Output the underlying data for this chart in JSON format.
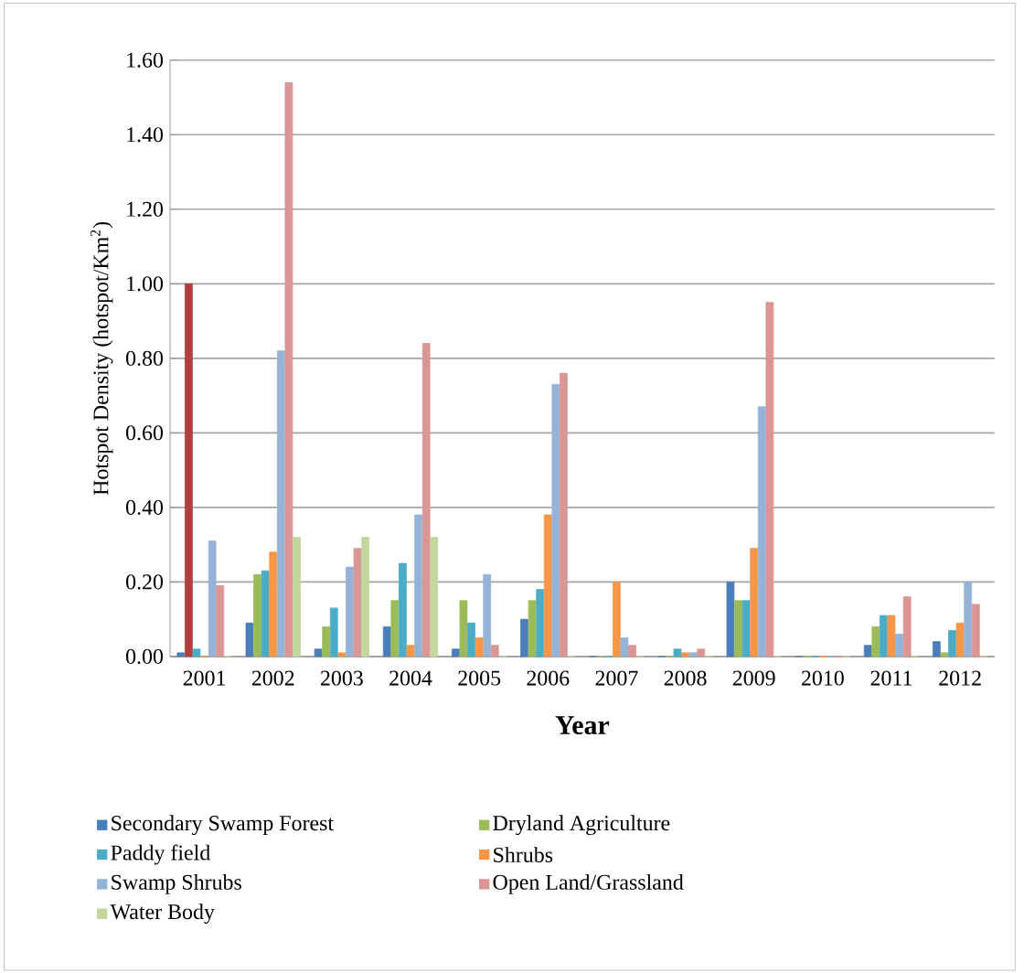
{
  "chart_data": {
    "type": "bar",
    "xlabel": "Year",
    "ylabel": "Hotspot Density (hotspot/Km$^{2}$)",
    "categories": [
      "2001",
      "2002",
      "2003",
      "2004",
      "2005",
      "2006",
      "2007",
      "2008",
      "2009",
      "2010",
      "2011",
      "2012"
    ],
    "series": [
      {
        "name": "Secondary Swamp Forest",
        "color": "#4a7ebb",
        "values": [
          0.01,
          0.09,
          0.02,
          0.08,
          0.02,
          0.1,
          0.0,
          0.0,
          0.2,
          0.0,
          0.03,
          0.04
        ]
      },
      {
        "name": "Dryland Agriculture",
        "color": "#9bbb59",
        "colors": [
          "#b04040",
          "#9bbb59",
          "#9bbb59",
          "#9bbb59",
          "#9bbb59",
          "#9bbb59",
          "#9bbb59",
          "#9bbb59",
          "#9bbb59",
          "#9bbb59",
          "#9bbb59",
          "#9bbb59"
        ],
        "values": [
          1.0,
          0.22,
          0.08,
          0.15,
          0.15,
          0.15,
          0.0,
          0.0,
          0.15,
          0.0,
          0.08,
          0.01
        ]
      },
      {
        "name": "Paddy field",
        "color": "#4bacc6",
        "values": [
          0.02,
          0.23,
          0.13,
          0.25,
          0.09,
          0.18,
          0.0,
          0.02,
          0.15,
          0.0,
          0.11,
          0.07
        ]
      },
      {
        "name": "Shrubs",
        "color": "#f79646",
        "values": [
          0.0,
          0.28,
          0.01,
          0.03,
          0.05,
          0.38,
          0.2,
          0.01,
          0.29,
          0.0,
          0.11,
          0.09
        ]
      },
      {
        "name": "Swamp Shrubs",
        "color": "#95b3d7",
        "values": [
          0.31,
          0.82,
          0.24,
          0.38,
          0.22,
          0.73,
          0.05,
          0.01,
          0.67,
          0.0,
          0.06,
          0.2
        ]
      },
      {
        "name": "Open Land/Grassland",
        "color": "#d99694",
        "values": [
          0.19,
          1.54,
          0.29,
          0.84,
          0.03,
          0.76,
          0.03,
          0.02,
          0.95,
          0.0,
          0.16,
          0.14
        ]
      },
      {
        "name": "Water Body",
        "color": "#c3d69b",
        "values": [
          0.0,
          0.32,
          0.32,
          0.32,
          0.0,
          0.0,
          0.0,
          0.0,
          0.0,
          0.0,
          0.0,
          0.0
        ]
      }
    ],
    "ylim": [
      0,
      1.6
    ],
    "yticks": [
      {
        "value": 0,
        "label": "0.00"
      },
      {
        "value": 0.2,
        "label": "0.20"
      },
      {
        "value": 0.4,
        "label": "0.40"
      },
      {
        "value": 0.6,
        "label": "0.60"
      },
      {
        "value": 0.8,
        "label": "0.80"
      },
      {
        "value": 1.0,
        "label": "1.00"
      },
      {
        "value": 1.2,
        "label": "1.20"
      },
      {
        "value": 1.4,
        "label": "1.40"
      },
      {
        "value": 1.6,
        "label": "1.60"
      }
    ],
    "grid": "y",
    "legend": "bottom"
  }
}
